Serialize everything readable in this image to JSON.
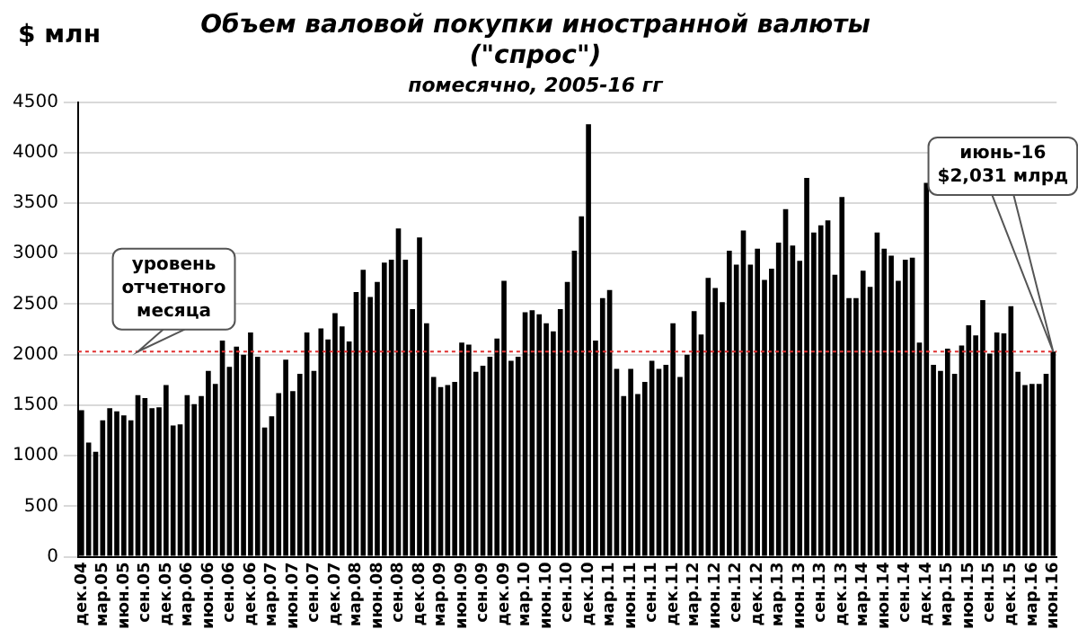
{
  "chart_data": {
    "type": "bar",
    "title": "Объем валовой покупки иностранной валюты\n(\"спрос\")",
    "subtitle": "помесячно, 2005-16 гг",
    "ylabel": "$ млн",
    "categories": [
      "дек.04",
      null,
      null,
      "мар.05",
      null,
      null,
      "июн.05",
      null,
      null,
      "сен.05",
      null,
      null,
      "дек.05",
      null,
      null,
      "мар.06",
      null,
      null,
      "июн.06",
      null,
      null,
      "сен.06",
      null,
      null,
      "дек.06",
      null,
      null,
      "мар.07",
      null,
      null,
      "июн.07",
      null,
      null,
      "сен.07",
      null,
      null,
      "дек.07",
      null,
      null,
      "мар.08",
      null,
      null,
      "июн.08",
      null,
      null,
      "сен.08",
      null,
      null,
      "дек.08",
      null,
      null,
      "мар.09",
      null,
      null,
      "июн.09",
      null,
      null,
      "сен.09",
      null,
      null,
      "дек.09",
      null,
      null,
      "мар.10",
      null,
      null,
      "июн.10",
      null,
      null,
      "сен.10",
      null,
      null,
      "дек.10",
      null,
      null,
      "мар.11",
      null,
      null,
      "июн.11",
      null,
      null,
      "сен.11",
      null,
      null,
      "дек.11",
      null,
      null,
      "мар.12",
      null,
      null,
      "июн.12",
      null,
      null,
      "сен.12",
      null,
      null,
      "дек.12",
      null,
      null,
      "мар.13",
      null,
      null,
      "июн.13",
      null,
      null,
      "сен.13",
      null,
      null,
      "дек.13",
      null,
      null,
      "мар.14",
      null,
      null,
      "июн.14",
      null,
      null,
      "сен.14",
      null,
      null,
      "дек.14",
      null,
      null,
      "мар.15",
      null,
      null,
      "июн.15",
      null,
      null,
      "сен.15",
      null,
      null,
      "дек.15",
      null,
      null,
      "мар.16",
      null,
      null,
      "июн.16"
    ],
    "values": [
      1450,
      1130,
      1040,
      1350,
      1470,
      1440,
      1400,
      1350,
      1600,
      1570,
      1470,
      1480,
      1700,
      1300,
      1310,
      1600,
      1510,
      1590,
      1840,
      1710,
      2140,
      1880,
      2080,
      2000,
      2220,
      1980,
      1280,
      1390,
      1620,
      1950,
      1640,
      1810,
      2220,
      1840,
      2260,
      2150,
      2410,
      2280,
      2130,
      2620,
      2840,
      2570,
      2720,
      2910,
      2940,
      3250,
      2940,
      2450,
      3160,
      2310,
      1780,
      1680,
      1700,
      1730,
      2120,
      2100,
      1830,
      1890,
      1980,
      2160,
      2730,
      1940,
      1980,
      2420,
      2440,
      2400,
      2310,
      2230,
      2450,
      2720,
      3030,
      3370,
      4280,
      2140,
      2560,
      2640,
      1860,
      1590,
      1860,
      1610,
      1730,
      1940,
      1860,
      1900,
      2310,
      1780,
      2000,
      2430,
      2200,
      2760,
      2660,
      2520,
      3030,
      2890,
      3230,
      2890,
      3050,
      2740,
      2850,
      3110,
      3440,
      3080,
      2930,
      3750,
      3210,
      3280,
      3330,
      2790,
      3560,
      2560,
      2560,
      2830,
      2670,
      3210,
      3050,
      2980,
      2730,
      2940,
      2960,
      2120,
      3700,
      1900,
      1840,
      2060,
      1810,
      2090,
      2290,
      2190,
      2540,
      2010,
      2220,
      2210,
      2480,
      1830,
      1700,
      1710,
      1710,
      1810,
      2031
    ],
    "color": "#000000",
    "ylim": [
      0,
      4500
    ],
    "yticks": [
      0,
      500,
      1000,
      1500,
      2000,
      2500,
      3000,
      3500,
      4000,
      4500
    ],
    "grid": "y",
    "legend": false,
    "ref_lines": [
      {
        "axis": "y",
        "value": 2031,
        "label": "уровень\nотчетного\nмесяца",
        "color": "#e03030",
        "line_style": "dotted"
      }
    ],
    "annotations": [
      "июнь-16\n$2,031 млрд"
    ]
  }
}
